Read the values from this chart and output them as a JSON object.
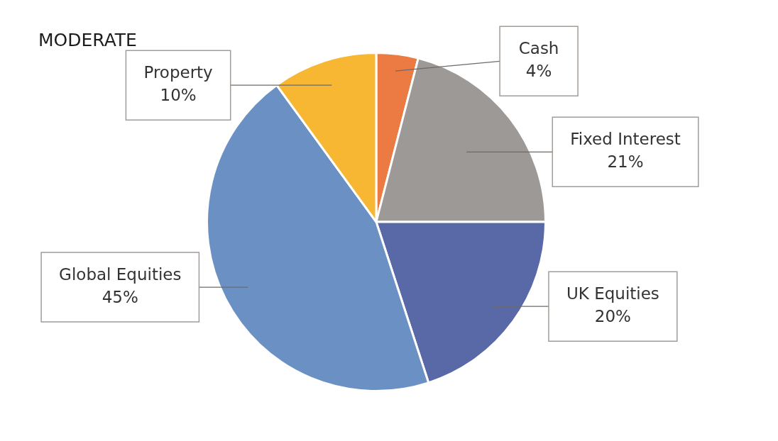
{
  "chart_data": {
    "type": "pie",
    "title": "MODERATE",
    "categories": [
      "Cash",
      "Fixed Interest",
      "UK Equities",
      "Global Equities",
      "Property"
    ],
    "values": [
      4,
      21,
      20,
      45,
      10
    ],
    "colors": [
      "#ec7b43",
      "#9d9996",
      "#5969a7",
      "#6b91c4",
      "#f8b733"
    ],
    "value_labels": [
      "4%",
      "21%",
      "20%",
      "45%",
      "10%"
    ]
  }
}
